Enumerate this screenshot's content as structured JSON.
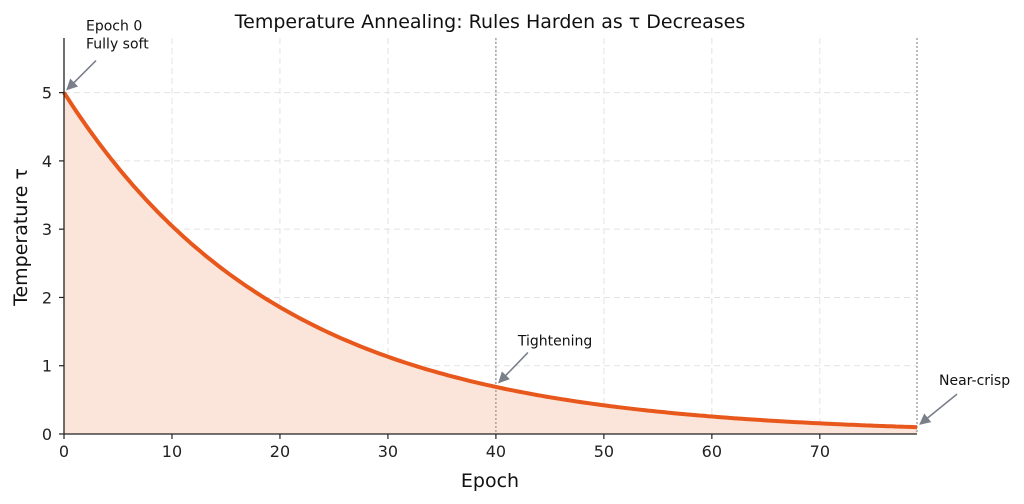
{
  "chart_data": {
    "type": "area",
    "title": "Temperature Annealing: Rules Harden as τ Decreases",
    "xlabel": "Epoch",
    "ylabel": "Temperature τ",
    "xlim": [
      0,
      79
    ],
    "ylim": [
      0,
      5.8
    ],
    "x_ticks": [
      0,
      10,
      20,
      30,
      40,
      50,
      60,
      70
    ],
    "y_ticks": [
      0,
      1,
      2,
      3,
      4,
      5
    ],
    "grid": true,
    "series": [
      {
        "name": "Temperature τ",
        "x": [
          0,
          5,
          10,
          15,
          20,
          25,
          30,
          35,
          40,
          45,
          50,
          55,
          60,
          65,
          70,
          75,
          79
        ],
        "values": [
          5.0,
          3.92,
          3.07,
          2.4,
          1.88,
          1.47,
          1.15,
          0.9,
          0.71,
          0.55,
          0.43,
          0.34,
          0.27,
          0.21,
          0.16,
          0.13,
          0.1
        ]
      }
    ],
    "vlines": [
      40,
      79
    ],
    "annotations": [
      {
        "lines": [
          "Epoch 0",
          "Fully soft"
        ],
        "x": 0,
        "y": 5.0
      },
      {
        "lines": [
          "Tightening"
        ],
        "x": 40,
        "y": 0.71
      },
      {
        "lines": [
          "Near-crisp"
        ],
        "x": 79,
        "y": 0.1
      }
    ],
    "colors": {
      "line": "#e8571b",
      "fill": "#fbe4da",
      "grid": "#e2e2e2",
      "axis": "#222222",
      "vline": "#999999",
      "arrow": "#7a7f8a"
    }
  }
}
